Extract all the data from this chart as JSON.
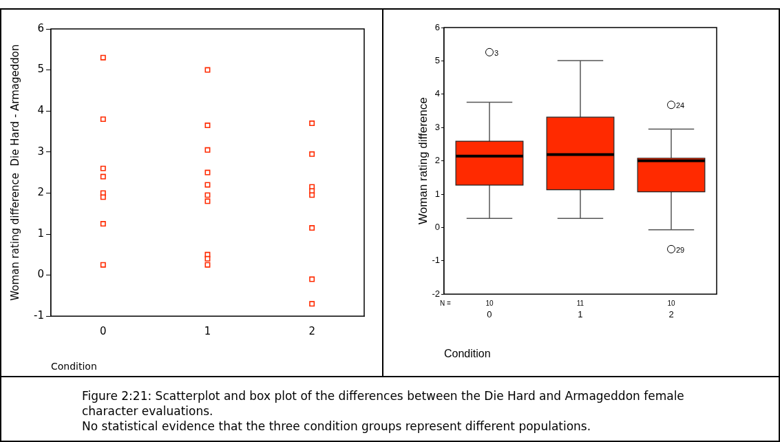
{
  "chart_data": [
    {
      "type": "scatter",
      "xlabel": "Condition",
      "ylabel": "Woman rating difference  Die Hard - Armageddon",
      "xlim": [
        -0.5,
        2.5
      ],
      "xticks": [
        0,
        1,
        2
      ],
      "ylim": [
        -1,
        6
      ],
      "yticks": [
        -1,
        0,
        1,
        2,
        3,
        4,
        5,
        6
      ],
      "grid": false,
      "legend": false,
      "marker": "square",
      "series": [
        {
          "color": "#ff2a00",
          "x": [
            0,
            0,
            0,
            0,
            0,
            0,
            0,
            0,
            1,
            1,
            1,
            1,
            1,
            1,
            1,
            1,
            1,
            1,
            2,
            2,
            2,
            2,
            2,
            2,
            2,
            2
          ],
          "values": [
            5.3,
            3.8,
            2.6,
            2.4,
            2.0,
            1.9,
            1.25,
            0.25,
            5.0,
            3.65,
            3.05,
            2.5,
            2.2,
            1.95,
            1.8,
            0.5,
            0.4,
            0.25,
            3.7,
            2.95,
            2.15,
            2.05,
            1.95,
            1.15,
            -0.1,
            -0.7
          ]
        }
      ],
      "annotations": [
        "Figure 2:21: Scatterplot and box plot of the differences between the Die Hard and Armageddon female character evaluations.",
        "No statistical evidence that the three condition groups represent different populations."
      ]
    },
    {
      "type": "box",
      "xlabel": "Condition",
      "ylabel": "Woman rating difference",
      "categories": [
        "0",
        "1",
        "2"
      ],
      "ylim": [
        -2,
        6
      ],
      "yticks": [
        -2,
        -1,
        0,
        1,
        2,
        3,
        4,
        5,
        6
      ],
      "grid": false,
      "legend": false,
      "color": "#ff2a00",
      "boxes": [
        {
          "low": 0.27,
          "q1": 1.27,
          "median": 2.14,
          "q3": 2.59,
          "high": 3.76,
          "outliers": [
            5.26
          ]
        },
        {
          "low": 0.27,
          "q1": 1.13,
          "median": 2.19,
          "q3": 3.31,
          "high": 5.01
        },
        {
          "low": -0.07,
          "q1": 1.07,
          "median": 2.0,
          "q3": 2.08,
          "high": 2.95,
          "outliers": [
            3.68,
            -0.65
          ]
        }
      ],
      "annotations": [
        "3",
        "24",
        "29",
        "N =",
        "10",
        "11",
        "10"
      ]
    }
  ]
}
